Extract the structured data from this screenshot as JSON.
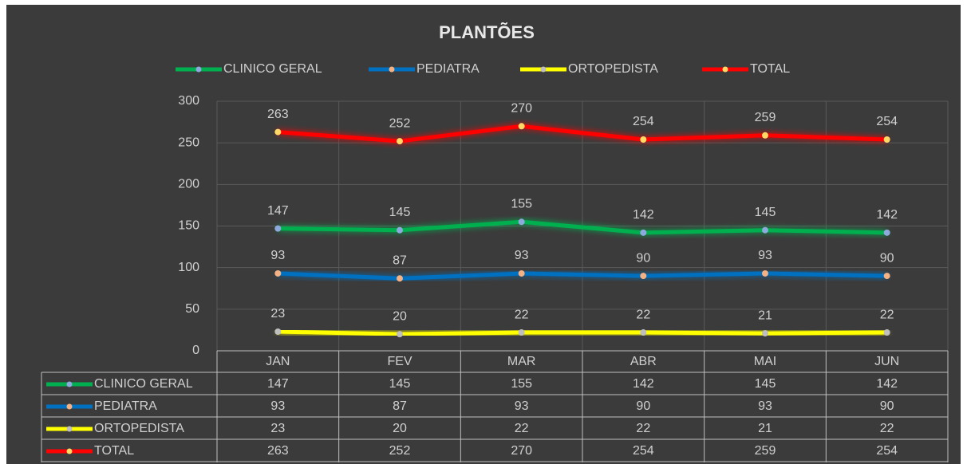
{
  "chart_data": {
    "type": "line",
    "title": "PLANTÕES",
    "categories": [
      "JAN",
      "FEV",
      "MAR",
      "ABR",
      "MAI",
      "JUN"
    ],
    "series": [
      {
        "name": "CLINICO GERAL",
        "color": "#00b050",
        "marker": "#8ea9db",
        "values": [
          147,
          145,
          155,
          142,
          145,
          142
        ]
      },
      {
        "name": "PEDIATRA",
        "color": "#0070c0",
        "marker": "#f4b183",
        "values": [
          93,
          87,
          93,
          90,
          93,
          90
        ]
      },
      {
        "name": "ORTOPEDISTA",
        "color": "#ffff00",
        "marker": "#bfbfbf",
        "values": [
          23,
          20,
          22,
          22,
          21,
          22
        ]
      },
      {
        "name": "TOTAL",
        "color": "#ff0000",
        "marker": "#ffd966",
        "values": [
          263,
          252,
          270,
          254,
          259,
          254
        ]
      }
    ],
    "ylim": [
      0,
      300
    ],
    "yticks": [
      0,
      50,
      100,
      150,
      200,
      250,
      300
    ],
    "grid": true,
    "legend": "top",
    "data_table": true
  }
}
